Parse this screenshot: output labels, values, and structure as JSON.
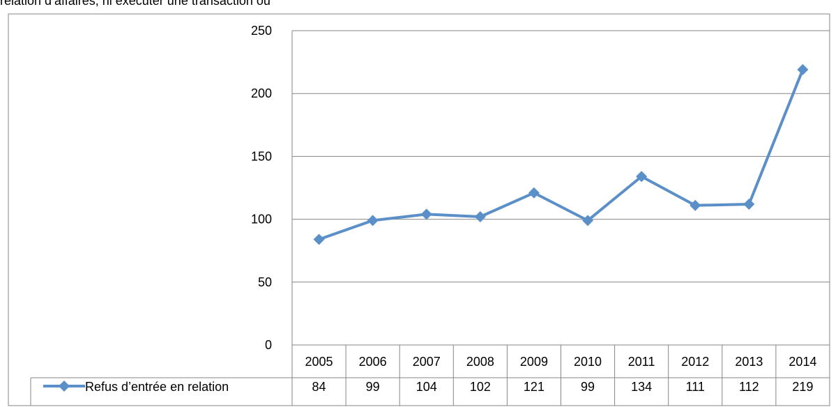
{
  "page": {
    "top_text": "relation d’affaires, ni exécuter une transaction ou"
  },
  "chart_data": {
    "type": "line",
    "categories": [
      "2005",
      "2006",
      "2007",
      "2008",
      "2009",
      "2010",
      "2011",
      "2012",
      "2013",
      "2014"
    ],
    "series": [
      {
        "name": "Refus d’entrée en relation",
        "values": [
          84,
          99,
          104,
          102,
          121,
          99,
          134,
          111,
          112,
          219
        ]
      }
    ],
    "ylim": [
      0,
      250
    ],
    "yticks": [
      "0",
      "50",
      "100",
      "150",
      "200",
      "250"
    ],
    "grid": true,
    "legend_placement": "data-table-left",
    "data_table": true,
    "colors": {
      "series": "#5b8fc8",
      "grid": "#868686",
      "border": "#868686"
    }
  }
}
